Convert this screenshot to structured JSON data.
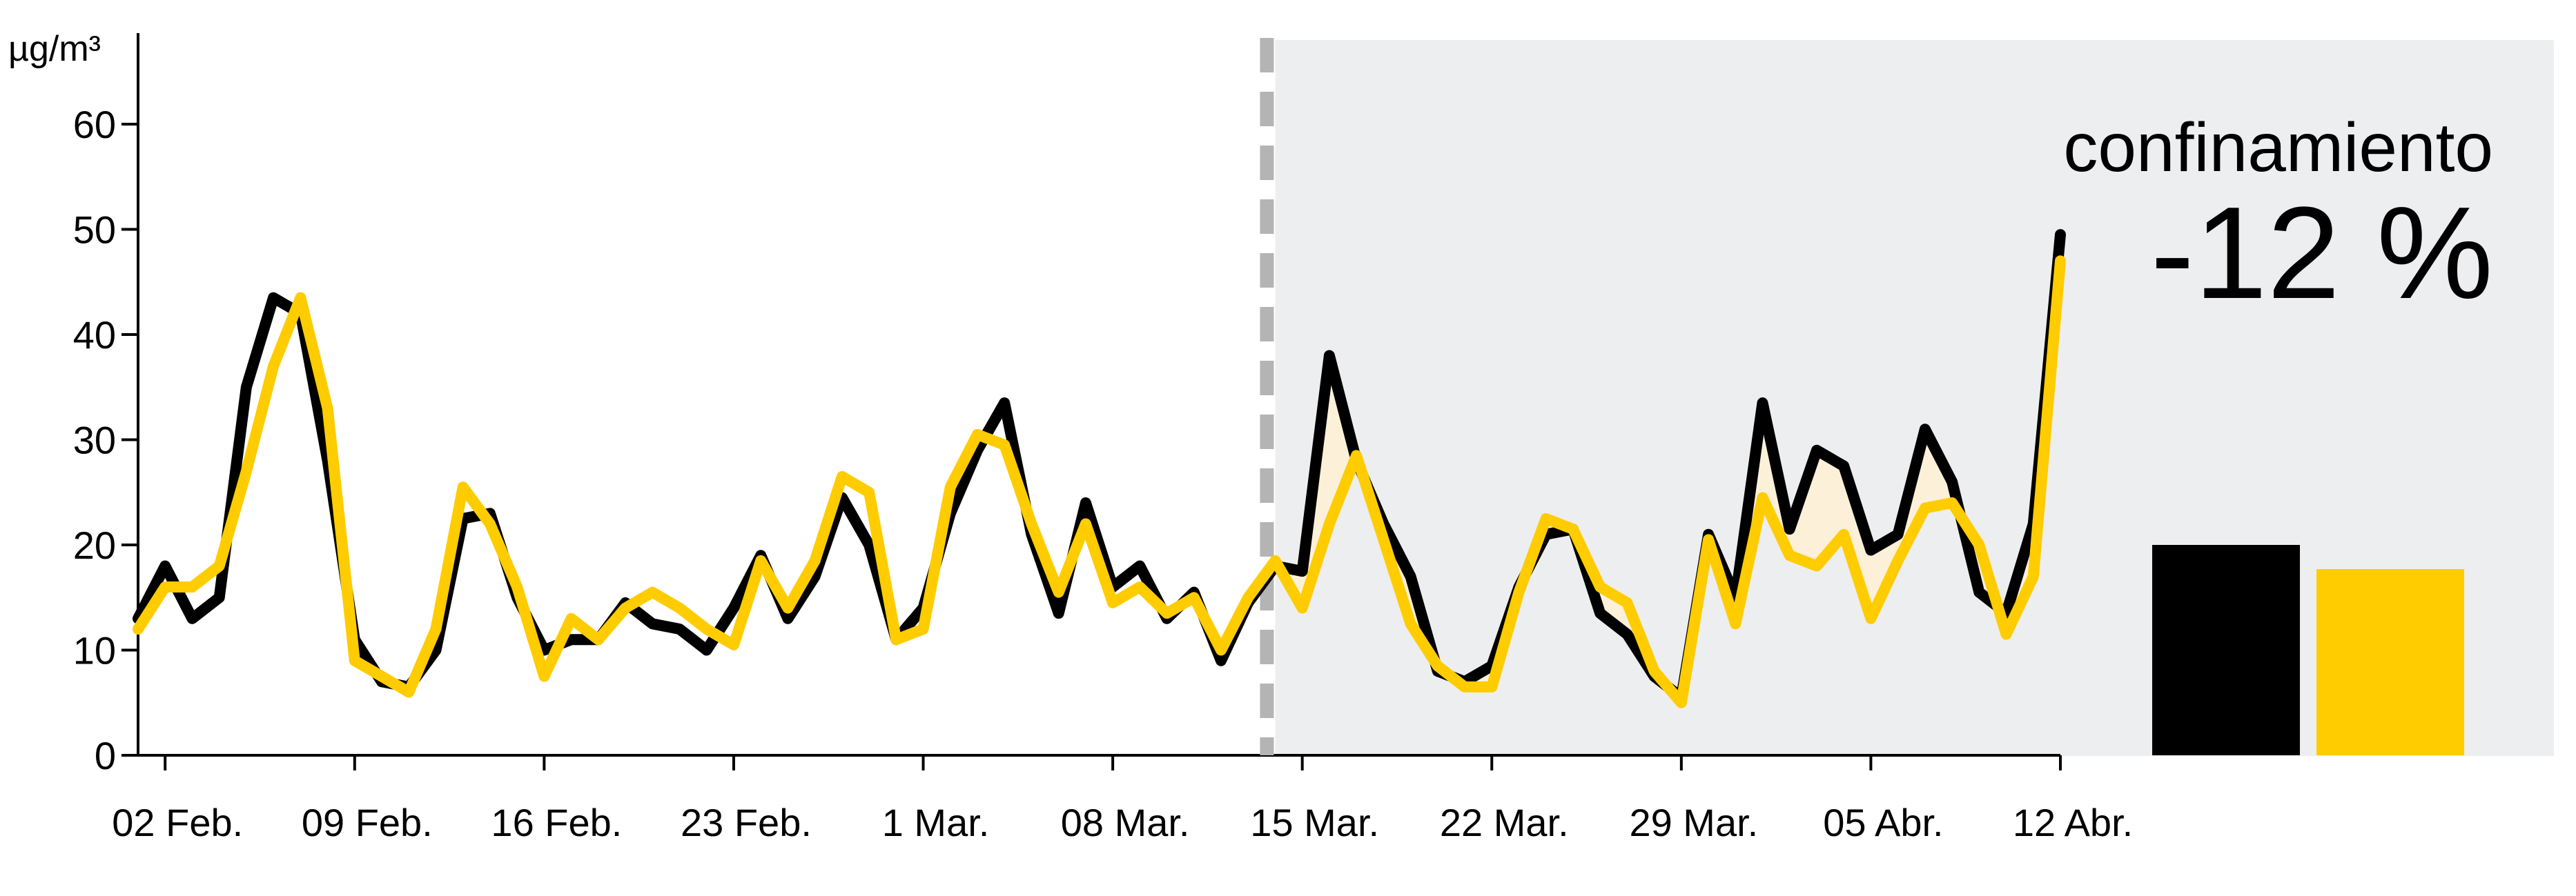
{
  "chart_data": {
    "type": "line",
    "title": "",
    "ylabel": "µg/m³",
    "xlabel": "",
    "ylim": [
      0,
      65
    ],
    "yticks": [
      0,
      10,
      20,
      30,
      40,
      50,
      60
    ],
    "grid": false,
    "x_start": "2020-02-01",
    "x_end": "2020-04-12",
    "xtick_labels": [
      "02 Feb.",
      "09 Feb.",
      "16 Feb.",
      "23 Feb.",
      "1 Mar.",
      "08 Mar.",
      "15 Mar.",
      "22 Mar.",
      "29 Mar.",
      "05 Abr.",
      "12 Abr."
    ],
    "xtick_dates": [
      "2020-02-02",
      "2020-02-09",
      "2020-02-16",
      "2020-02-23",
      "2020-03-01",
      "2020-03-08",
      "2020-03-15",
      "2020-03-22",
      "2020-03-29",
      "2020-04-05",
      "2020-04-12"
    ],
    "lockdown": {
      "start": "2020-03-14",
      "label": "confinamiento",
      "change": "-12 %"
    },
    "series": [
      {
        "color": "#000000",
        "values": [
          13,
          18,
          13,
          15,
          35,
          43.5,
          42,
          28,
          11,
          7,
          6.5,
          10,
          22.5,
          23,
          15,
          10,
          11,
          11,
          14.5,
          12.5,
          12,
          10,
          14,
          19,
          13,
          17,
          24.5,
          20,
          11,
          14,
          23,
          29,
          33.5,
          21,
          13.5,
          24,
          16,
          18,
          13,
          15.5,
          9,
          14.5,
          18,
          17.5,
          38,
          28,
          22,
          17,
          8,
          7,
          8.5,
          16,
          21,
          21.5,
          13.5,
          11.5,
          7.5,
          5.5,
          21,
          15,
          33.5,
          21.5,
          29,
          27.5,
          19.5,
          21,
          31,
          26,
          15.5,
          13.5,
          22,
          49.5
        ]
      },
      {
        "color": "#ffcc00",
        "values": [
          12,
          16,
          16,
          18,
          27,
          37,
          43.5,
          33,
          9,
          7.5,
          6,
          12,
          25.5,
          22,
          16,
          7.5,
          13,
          11,
          14,
          15.5,
          14,
          12,
          10.5,
          18.5,
          14,
          18.5,
          26.5,
          25,
          11,
          12,
          25.5,
          30.5,
          29.5,
          22,
          15.5,
          22,
          14.5,
          16,
          13.5,
          15,
          10,
          15,
          18.5,
          14,
          22,
          28.5,
          20.5,
          12.5,
          8.5,
          6.5,
          6.5,
          15.5,
          22.5,
          21.5,
          16,
          14.5,
          8,
          5,
          20.5,
          12.5,
          24.5,
          19,
          18,
          21,
          13,
          18.5,
          23.5,
          24,
          20,
          11.5,
          17,
          47
        ]
      }
    ],
    "bar_comparison": [
      {
        "color": "#000000",
        "value": 20
      },
      {
        "color": "#ffcc00",
        "value": 17.7
      }
    ],
    "colors": {
      "lockdown_background": "#edeef0",
      "difference_fill": "#fdf0d9",
      "divider": "#b4b4b4"
    }
  }
}
